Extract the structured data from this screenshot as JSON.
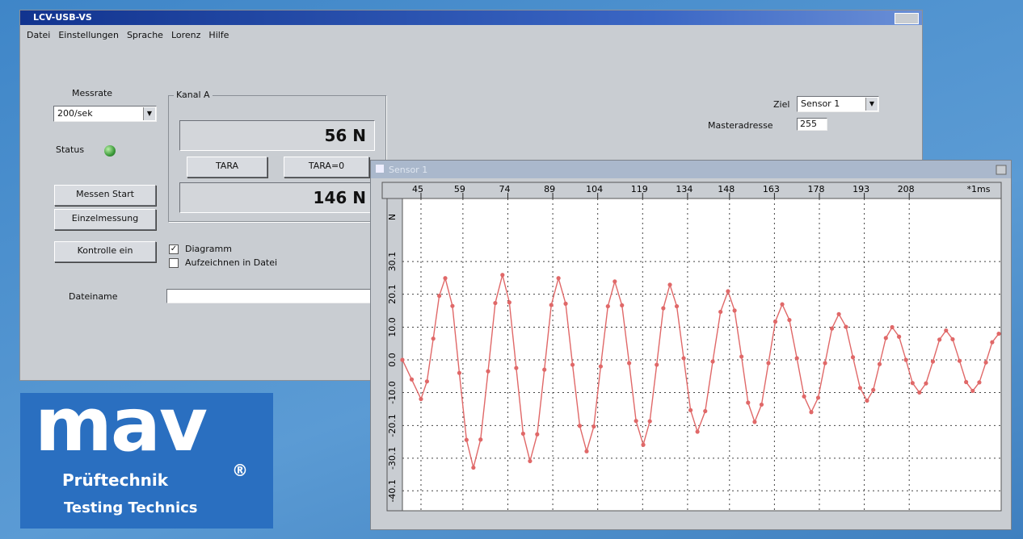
{
  "window": {
    "title": "LCV-USB-VS",
    "menu": [
      "Datei",
      "Einstellungen",
      "Sprache",
      "Lorenz",
      "Hilfe"
    ]
  },
  "controls": {
    "messrate_label": "Messrate",
    "messrate_value": "200/sek",
    "status_label": "Status",
    "buttons": [
      "Messen Start",
      "Einzelmessung",
      "Kontrolle ein"
    ],
    "checkboxes": [
      {
        "label": "Diagramm",
        "checked": true
      },
      {
        "label": "Aufzeichnen in Datei",
        "checked": false
      }
    ],
    "dateiname_label": "Dateiname",
    "ziel_label": "Ziel",
    "ziel_value": "Sensor 1",
    "masteradresse_label": "Masteradresse",
    "masteradresse_value": "255"
  },
  "kanal": {
    "title": "Kanal A",
    "display_1": "56 N",
    "display_2": "146 N",
    "buttons": [
      "TARA",
      "TARA=0"
    ]
  },
  "chart_window": {
    "title": "Sensor 1"
  },
  "chart_data": {
    "type": "line",
    "color": "#e06868",
    "grid": true,
    "y_label": "N",
    "x_unit": "*1ms",
    "x": [
      38.8,
      41.9,
      45.0,
      47.0,
      49.1,
      51.1,
      53.1,
      55.5,
      57.8,
      60.2,
      62.5,
      64.9,
      67.4,
      69.8,
      72.2,
      74.5,
      76.8,
      79.1,
      81.4,
      83.8,
      86.2,
      88.5,
      90.9,
      93.3,
      95.6,
      98.0,
      100.3,
      102.7,
      105.0,
      107.4,
      109.7,
      112.1,
      114.5,
      116.8,
      119.2,
      121.4,
      123.7,
      125.9,
      128.1,
      130.4,
      132.7,
      135.0,
      137.3,
      139.9,
      142.4,
      145.0,
      147.5,
      149.7,
      152.0,
      154.2,
      156.4,
      158.7,
      161.0,
      163.3,
      165.6,
      168.0,
      170.5,
      172.9,
      175.3,
      177.6,
      179.9,
      182.2,
      184.5,
      186.9,
      189.2,
      191.6,
      193.9,
      196.0,
      198.1,
      200.2,
      202.3,
      204.6,
      206.9,
      209.1,
      211.4,
      213.6,
      215.9,
      218.1,
      220.3,
      222.5,
      224.8,
      227.0,
      229.2,
      231.4,
      233.6,
      235.7,
      237.9
    ],
    "values": [
      0,
      -6,
      -12,
      -6.6,
      6.5,
      19.6,
      25,
      16.5,
      -4,
      -24.5,
      -33,
      -24.4,
      -3.5,
      17.4,
      26,
      17.6,
      -2.5,
      -22.6,
      -31,
      -22.8,
      -3,
      16.8,
      25,
      17.2,
      -1.5,
      -20.2,
      -28,
      -20.4,
      -2,
      16.4,
      24,
      16.7,
      -1,
      -18.7,
      -26,
      -18.8,
      -1.5,
      15.8,
      23,
      16.4,
      0.5,
      -15.4,
      -22,
      -15.7,
      -0.5,
      14.7,
      21,
      15.1,
      1,
      -13.1,
      -19,
      -13.7,
      -1,
      11.7,
      17,
      12.2,
      0.5,
      -11.2,
      -16,
      -11.6,
      -1,
      9.6,
      14,
      10.1,
      0.8,
      -8.6,
      -12.5,
      -9.2,
      -1.3,
      6.7,
      10,
      7.1,
      0,
      -7.1,
      -10,
      -7.2,
      -0.5,
      6.2,
      9,
      6.3,
      -0.3,
      -6.8,
      -9.5,
      -6.9,
      -0.8,
      5.4,
      8
    ],
    "xlim": [
      38.8,
      238.7
    ],
    "xticks": [
      45,
      59,
      74,
      89,
      104,
      119,
      134,
      148,
      163,
      178,
      193,
      208
    ],
    "ylim": [
      -46.2,
      49.4
    ],
    "yticks": [
      30.1,
      20.1,
      {
        "value": 10,
        "label": "10.0"
      },
      {
        "value": 0,
        "label": "0.0"
      },
      {
        "value": -10,
        "label": "-10.0"
      },
      -20.1,
      -30.1,
      -40.1
    ]
  },
  "logo": {
    "brand": "mav",
    "line1": "Prüftechnik",
    "mark": "®",
    "line2": "Testing Technics"
  }
}
